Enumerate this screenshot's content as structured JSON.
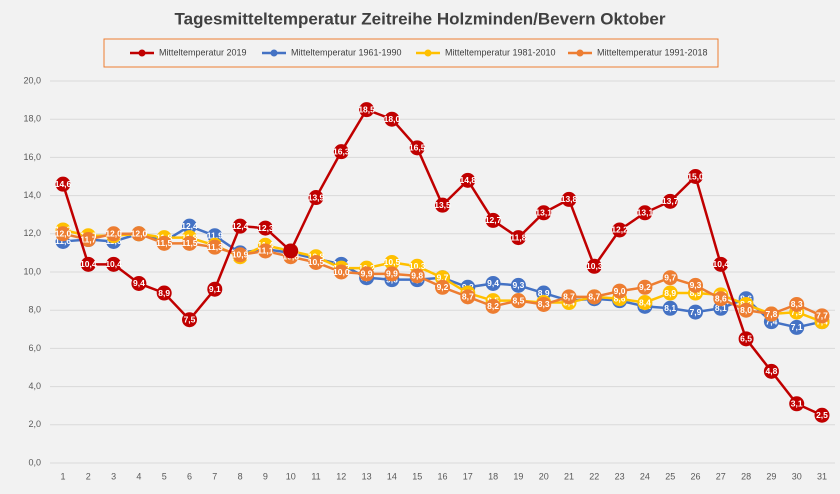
{
  "chart_data": {
    "type": "line",
    "title": "Tagesmitteltemperatur Zeitreihe Holzminden/Bevern Oktober",
    "categories": [
      "1",
      "2",
      "3",
      "4",
      "5",
      "6",
      "7",
      "8",
      "9",
      "10",
      "11",
      "12",
      "13",
      "14",
      "15",
      "16",
      "17",
      "18",
      "19",
      "20",
      "21",
      "22",
      "23",
      "24",
      "25",
      "26",
      "27",
      "28",
      "29",
      "30",
      "31"
    ],
    "ylim": [
      0,
      20
    ],
    "yticks": [
      {
        "value": 0,
        "label": "0,0"
      },
      {
        "value": 2,
        "label": "2,0"
      },
      {
        "value": 4,
        "label": "4,0"
      },
      {
        "value": 6,
        "label": "6,0"
      },
      {
        "value": 8,
        "label": "8,0"
      },
      {
        "value": 10,
        "label": "10,0"
      },
      {
        "value": 12,
        "label": "12,0"
      },
      {
        "value": 14,
        "label": "14,0"
      },
      {
        "value": 16,
        "label": "16,0"
      },
      {
        "value": 18,
        "label": "18,0"
      },
      {
        "value": 20,
        "label": "20,0"
      }
    ],
    "grid": true,
    "series": [
      {
        "name": "Mitteltemperatur 2019",
        "color": "#c00000",
        "values": [
          14.6,
          10.4,
          10.4,
          9.4,
          8.9,
          7.5,
          9.1,
          12.4,
          12.3,
          11.1,
          13.9,
          16.3,
          18.5,
          18.0,
          16.5,
          13.5,
          14.8,
          12.7,
          11.8,
          13.1,
          13.8,
          10.3,
          12.2,
          13.1,
          13.7,
          15.0,
          10.4,
          6.5,
          4.8,
          3.1,
          2.5
        ],
        "value_labels": [
          "14,6",
          "10,4",
          "10,4",
          "9,4",
          "8,9",
          "7,5",
          "9,1",
          "12,4",
          "12,3",
          null,
          "13,9",
          "16,3",
          "18,5",
          "18,0",
          "16,5",
          "13,5",
          "14,8",
          "12,7",
          "11,8",
          "13,1",
          "13,8",
          "10,3",
          "12,2",
          "13,1",
          "13,7",
          "15,0",
          "10,4",
          "6,5",
          "4,8",
          "3,1",
          "2,5"
        ]
      },
      {
        "name": "Mitteltemperatur 1961-1990",
        "color": "#4472c4",
        "values": [
          11.6,
          11.7,
          11.6,
          12.0,
          11.6,
          12.4,
          11.9,
          11.0,
          11.2,
          11.0,
          10.7,
          10.4,
          9.7,
          9.6,
          9.6,
          9.7,
          9.2,
          9.4,
          9.3,
          8.9,
          8.5,
          8.6,
          8.5,
          8.2,
          8.1,
          7.9,
          8.1,
          8.6,
          7.4,
          7.1,
          7.4
        ],
        "value_labels": [
          "11,6",
          "11,7",
          "11,6",
          "12,0",
          "11,6",
          "12,4",
          "11,9",
          "11,0",
          "11,2",
          "11,0",
          "10,7",
          "10,4",
          "9,7",
          "9,6",
          "9,6",
          "9,7",
          "9,2",
          "9,4",
          "9,3",
          "8,9",
          "8,5",
          "8,6",
          "8,5",
          "8,2",
          "8,1",
          "7,9",
          "8,1",
          "8,6",
          "7,4",
          "7,1",
          "7,4"
        ]
      },
      {
        "name": "Mitteltemperatur 1981-2010",
        "color": "#ffc000",
        "values": [
          12.2,
          11.9,
          11.9,
          12.0,
          11.8,
          11.8,
          11.4,
          10.8,
          11.4,
          11.1,
          10.8,
          10.2,
          10.2,
          10.5,
          10.3,
          9.7,
          8.9,
          8.5,
          8.5,
          8.4,
          8.4,
          8.7,
          8.6,
          8.4,
          8.9,
          8.9,
          8.8,
          8.3,
          7.8,
          7.9,
          7.4
        ],
        "value_labels": [
          "12,2",
          "11,9",
          "11,9",
          "12,0",
          "11,8",
          "11,8",
          "11,4",
          "10,8",
          "11,4",
          "11,1",
          "10,8",
          "10,2",
          "10,2",
          "10,5",
          "10,3",
          "9,7",
          "8,9",
          "8,5",
          "8,5",
          "8,4",
          "8,4",
          "8,7",
          "8,6",
          "8,4",
          "8,9",
          "8,9",
          "8,8",
          "8,3",
          "7,8",
          "7,9",
          "7,4"
        ]
      },
      {
        "name": "Mitteltemperatur 1991-2018",
        "color": "#ed7d31",
        "values": [
          12.0,
          11.7,
          12.0,
          12.0,
          11.5,
          11.5,
          11.3,
          10.9,
          11.1,
          10.8,
          10.5,
          10.0,
          9.9,
          9.9,
          9.8,
          9.2,
          8.7,
          8.2,
          8.5,
          8.3,
          8.7,
          8.7,
          9.0,
          9.2,
          9.7,
          9.3,
          8.6,
          8.0,
          7.8,
          8.3,
          7.7
        ],
        "value_labels": [
          "12,0",
          "11,7",
          "12,0",
          "12,0",
          "11,5",
          "11,5",
          "11,3",
          "10,9",
          "11,1",
          "10,8",
          "10,5",
          "10,0",
          "9,9",
          "9,9",
          "9,8",
          "9,2",
          "8,7",
          "8,2",
          "8,5",
          "8,3",
          "8,7",
          "8,7",
          "9,0",
          "9,2",
          "9,7",
          "9,3",
          "8,6",
          "8,0",
          "7,8",
          "8,3",
          "7,7"
        ]
      }
    ]
  }
}
